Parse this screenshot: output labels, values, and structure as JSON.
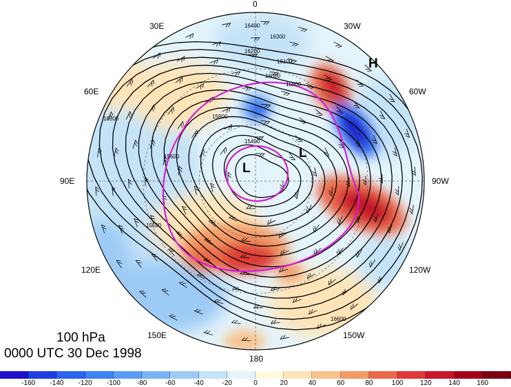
{
  "map": {
    "level": "100 hPa",
    "time": "0000 UTC 30 Dec 1998",
    "longitude_labels": [
      "0",
      "30W",
      "60W",
      "90W",
      "120W",
      "150W",
      "180",
      "150E",
      "120E",
      "90E",
      "60E",
      "30E"
    ],
    "pressure_systems": [
      {
        "type": "H",
        "label": "H"
      },
      {
        "type": "L",
        "label": "L"
      },
      {
        "type": "L",
        "label": "L"
      }
    ],
    "contour_labels": [
      "16400",
      "16300",
      "16200",
      "16100",
      "16000",
      "15900",
      "15800",
      "15600",
      "15500",
      "15400",
      "16500",
      "16600"
    ],
    "highlight_color": "#d21ed2"
  },
  "colorbar": {
    "tick_labels": [
      "-160",
      "-140",
      "-120",
      "-100",
      "-80",
      "-60",
      "-40",
      "-20",
      "0",
      "20",
      "40",
      "60",
      "80",
      "100",
      "120",
      "140",
      "160"
    ],
    "colors": [
      "#1c10c8",
      "#1f3ee0",
      "#2c63ef",
      "#3f82f3",
      "#5a9cf5",
      "#78b4f5",
      "#9ecbf5",
      "#c4e3f7",
      "#e4f4fb",
      "#fffadf",
      "#fde4b8",
      "#f9c28c",
      "#f39a65",
      "#e9694b",
      "#de3a35",
      "#c8162a",
      "#a4001e",
      "#7a0012"
    ]
  }
}
